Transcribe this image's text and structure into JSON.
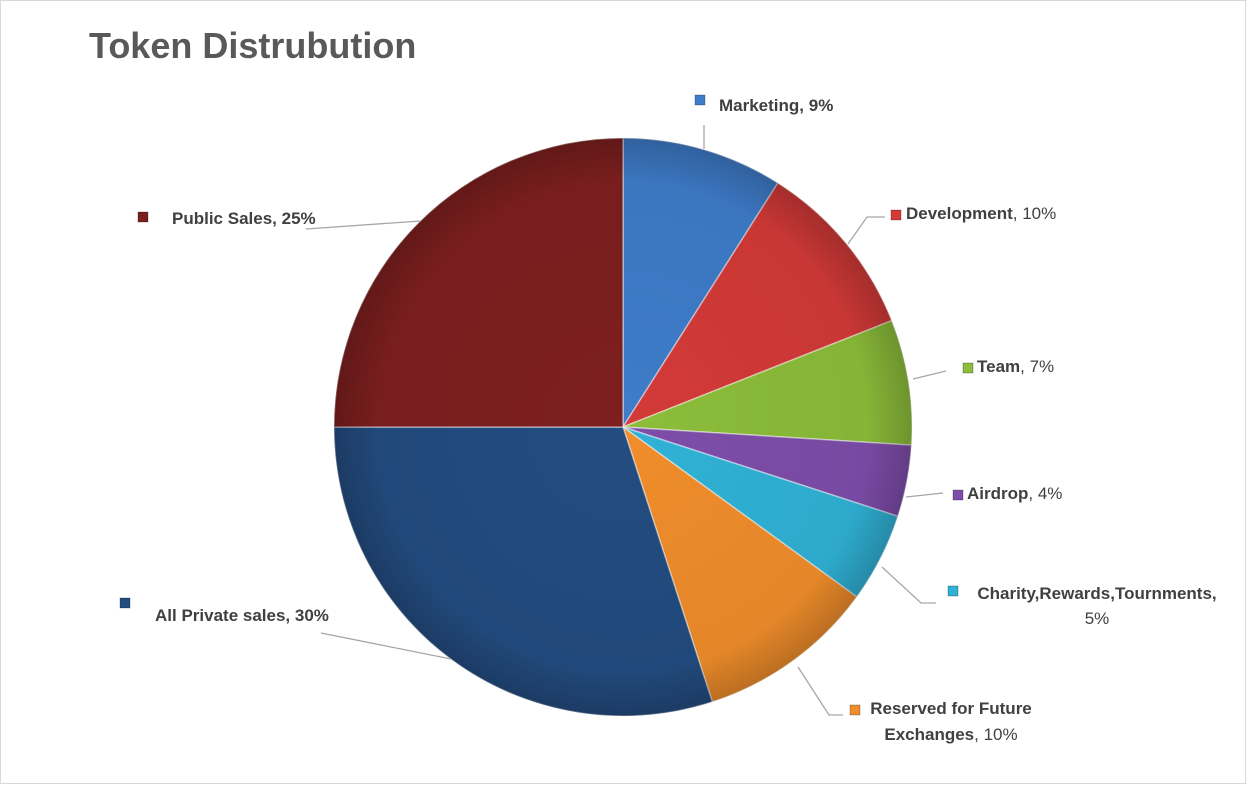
{
  "chart_data": {
    "type": "pie",
    "title": "Token Distrubution",
    "slices": [
      {
        "label": "Marketing",
        "value": 9,
        "color": "#3E7CC9"
      },
      {
        "label": "Development",
        "value": 10,
        "color": "#D33A38"
      },
      {
        "label": "Team",
        "value": 7,
        "color": "#8CBD3A"
      },
      {
        "label": "Airdrop",
        "value": 4,
        "color": "#7E4DAA"
      },
      {
        "label": "Charity,Rewards,Tournments",
        "value": 5,
        "color": "#30B2D6"
      },
      {
        "label": "Reserved for Future Exchanges",
        "value": 10,
        "color": "#F08D2B"
      },
      {
        "label": "All Private sales",
        "value": 30,
        "color": "#234C80"
      },
      {
        "label": "Public Sales",
        "value": 25,
        "color": "#7E1F1F"
      }
    ],
    "value_suffix": "%"
  }
}
